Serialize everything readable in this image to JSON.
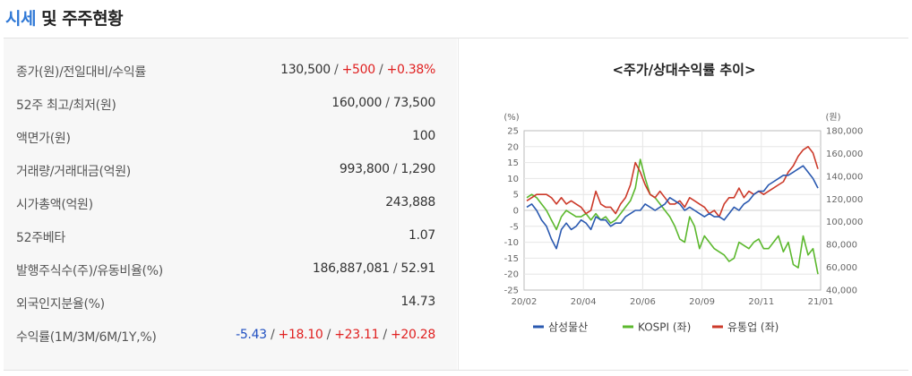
{
  "header": {
    "title_accent": "시세",
    "title_rest": " 및 주주현황"
  },
  "stats": [
    {
      "label": "종가(원)/전일대비/수익률",
      "values": [
        {
          "text": "130,500",
          "tone": "normal"
        },
        {
          "text": "+500",
          "tone": "up"
        },
        {
          "text": "+0.38%",
          "tone": "up"
        }
      ]
    },
    {
      "label": "52주 최고/최저(원)",
      "values": [
        {
          "text": "160,000",
          "tone": "normal"
        },
        {
          "text": "73,500",
          "tone": "normal"
        }
      ]
    },
    {
      "label": "액면가(원)",
      "values": [
        {
          "text": "100",
          "tone": "normal"
        }
      ]
    },
    {
      "label": "거래량/거래대금(억원)",
      "values": [
        {
          "text": "993,800",
          "tone": "normal"
        },
        {
          "text": "1,290",
          "tone": "normal"
        }
      ]
    },
    {
      "label": "시가총액(억원)",
      "values": [
        {
          "text": "243,888",
          "tone": "normal"
        }
      ]
    },
    {
      "label": "52주베타",
      "values": [
        {
          "text": "1.07",
          "tone": "normal"
        }
      ]
    },
    {
      "label": "발행주식수(주)/유동비율(%)",
      "values": [
        {
          "text": "186,887,081",
          "tone": "normal"
        },
        {
          "text": "52.91",
          "tone": "normal"
        }
      ]
    },
    {
      "label": "외국인지분율(%)",
      "values": [
        {
          "text": "14.73",
          "tone": "normal"
        }
      ]
    },
    {
      "label": "수익률(1M/3M/6M/1Y,%)",
      "values": [
        {
          "text": "-5.43",
          "tone": "down"
        },
        {
          "text": "+18.10",
          "tone": "up"
        },
        {
          "text": "+23.11",
          "tone": "up"
        },
        {
          "text": "+20.28",
          "tone": "up"
        }
      ]
    }
  ],
  "colors": {
    "up": "#e02020",
    "down": "#1f4fc1"
  },
  "chart_data": {
    "type": "line",
    "title": "<주가/상대수익률 추이>",
    "left_axis_unit": "(%)",
    "right_axis_unit": "(원)",
    "left_ylim": [
      -25,
      25
    ],
    "left_ticks": [
      "25",
      "20",
      "15",
      "10",
      "5",
      "0",
      "-5",
      "-10",
      "-15",
      "-20",
      "-25"
    ],
    "right_ylim": [
      40000,
      180000
    ],
    "right_ticks": [
      "180,000",
      "160,000",
      "140,000",
      "120,000",
      "100,000",
      "80,000",
      "60,000",
      "40,000"
    ],
    "x_ticks": [
      "20/02",
      "20/04",
      "20/06",
      "20/09",
      "20/11",
      "21/01"
    ],
    "grid": true,
    "legend_position": "bottom",
    "series": [
      {
        "name": "삼성물산",
        "color": "#2a59b0",
        "values": [
          1,
          2,
          0,
          -3,
          -5,
          -9,
          -12,
          -6,
          -4,
          -6,
          -5,
          -3,
          -4,
          -6,
          -2,
          -3,
          -3,
          -5,
          -4,
          -4,
          -2,
          -1,
          0,
          0,
          2,
          1,
          0,
          1,
          2,
          4,
          3,
          2,
          0,
          1,
          0,
          -1,
          -2,
          -1,
          -2,
          -2,
          -3,
          -1,
          1,
          0,
          2,
          3,
          5,
          6,
          6,
          8,
          9,
          10,
          11,
          11,
          12,
          13,
          14,
          12,
          10,
          7
        ]
      },
      {
        "name": "KOSPI (좌)",
        "color": "#5cb82e",
        "values": [
          4,
          5,
          4,
          2,
          0,
          -3,
          -6,
          -2,
          0,
          -1,
          -2,
          -2,
          -1,
          -3,
          -1,
          -3,
          -2,
          -4,
          -3,
          -1,
          1,
          3,
          7,
          16,
          10,
          5,
          4,
          2,
          0,
          -2,
          -5,
          -9,
          -10,
          -2,
          -5,
          -12,
          -8,
          -10,
          -12,
          -13,
          -14,
          -16,
          -15,
          -10,
          -11,
          -12,
          -10,
          -9,
          -12,
          -12,
          -10,
          -8,
          -13,
          -10,
          -17,
          -18,
          -8,
          -14,
          -12,
          -20
        ]
      },
      {
        "name": "유통업 (좌)",
        "color": "#cc3a2a",
        "values": [
          3,
          4,
          5,
          5,
          5,
          4,
          2,
          4,
          2,
          3,
          2,
          1,
          -1,
          0,
          6,
          2,
          1,
          1,
          -1,
          2,
          4,
          8,
          15,
          12,
          8,
          5,
          4,
          6,
          4,
          2,
          2,
          3,
          1,
          4,
          3,
          2,
          1,
          -1,
          0,
          -2,
          2,
          4,
          4,
          7,
          4,
          6,
          5,
          6,
          5,
          6,
          7,
          8,
          9,
          12,
          14,
          17,
          19,
          20,
          18,
          13
        ]
      }
    ]
  }
}
